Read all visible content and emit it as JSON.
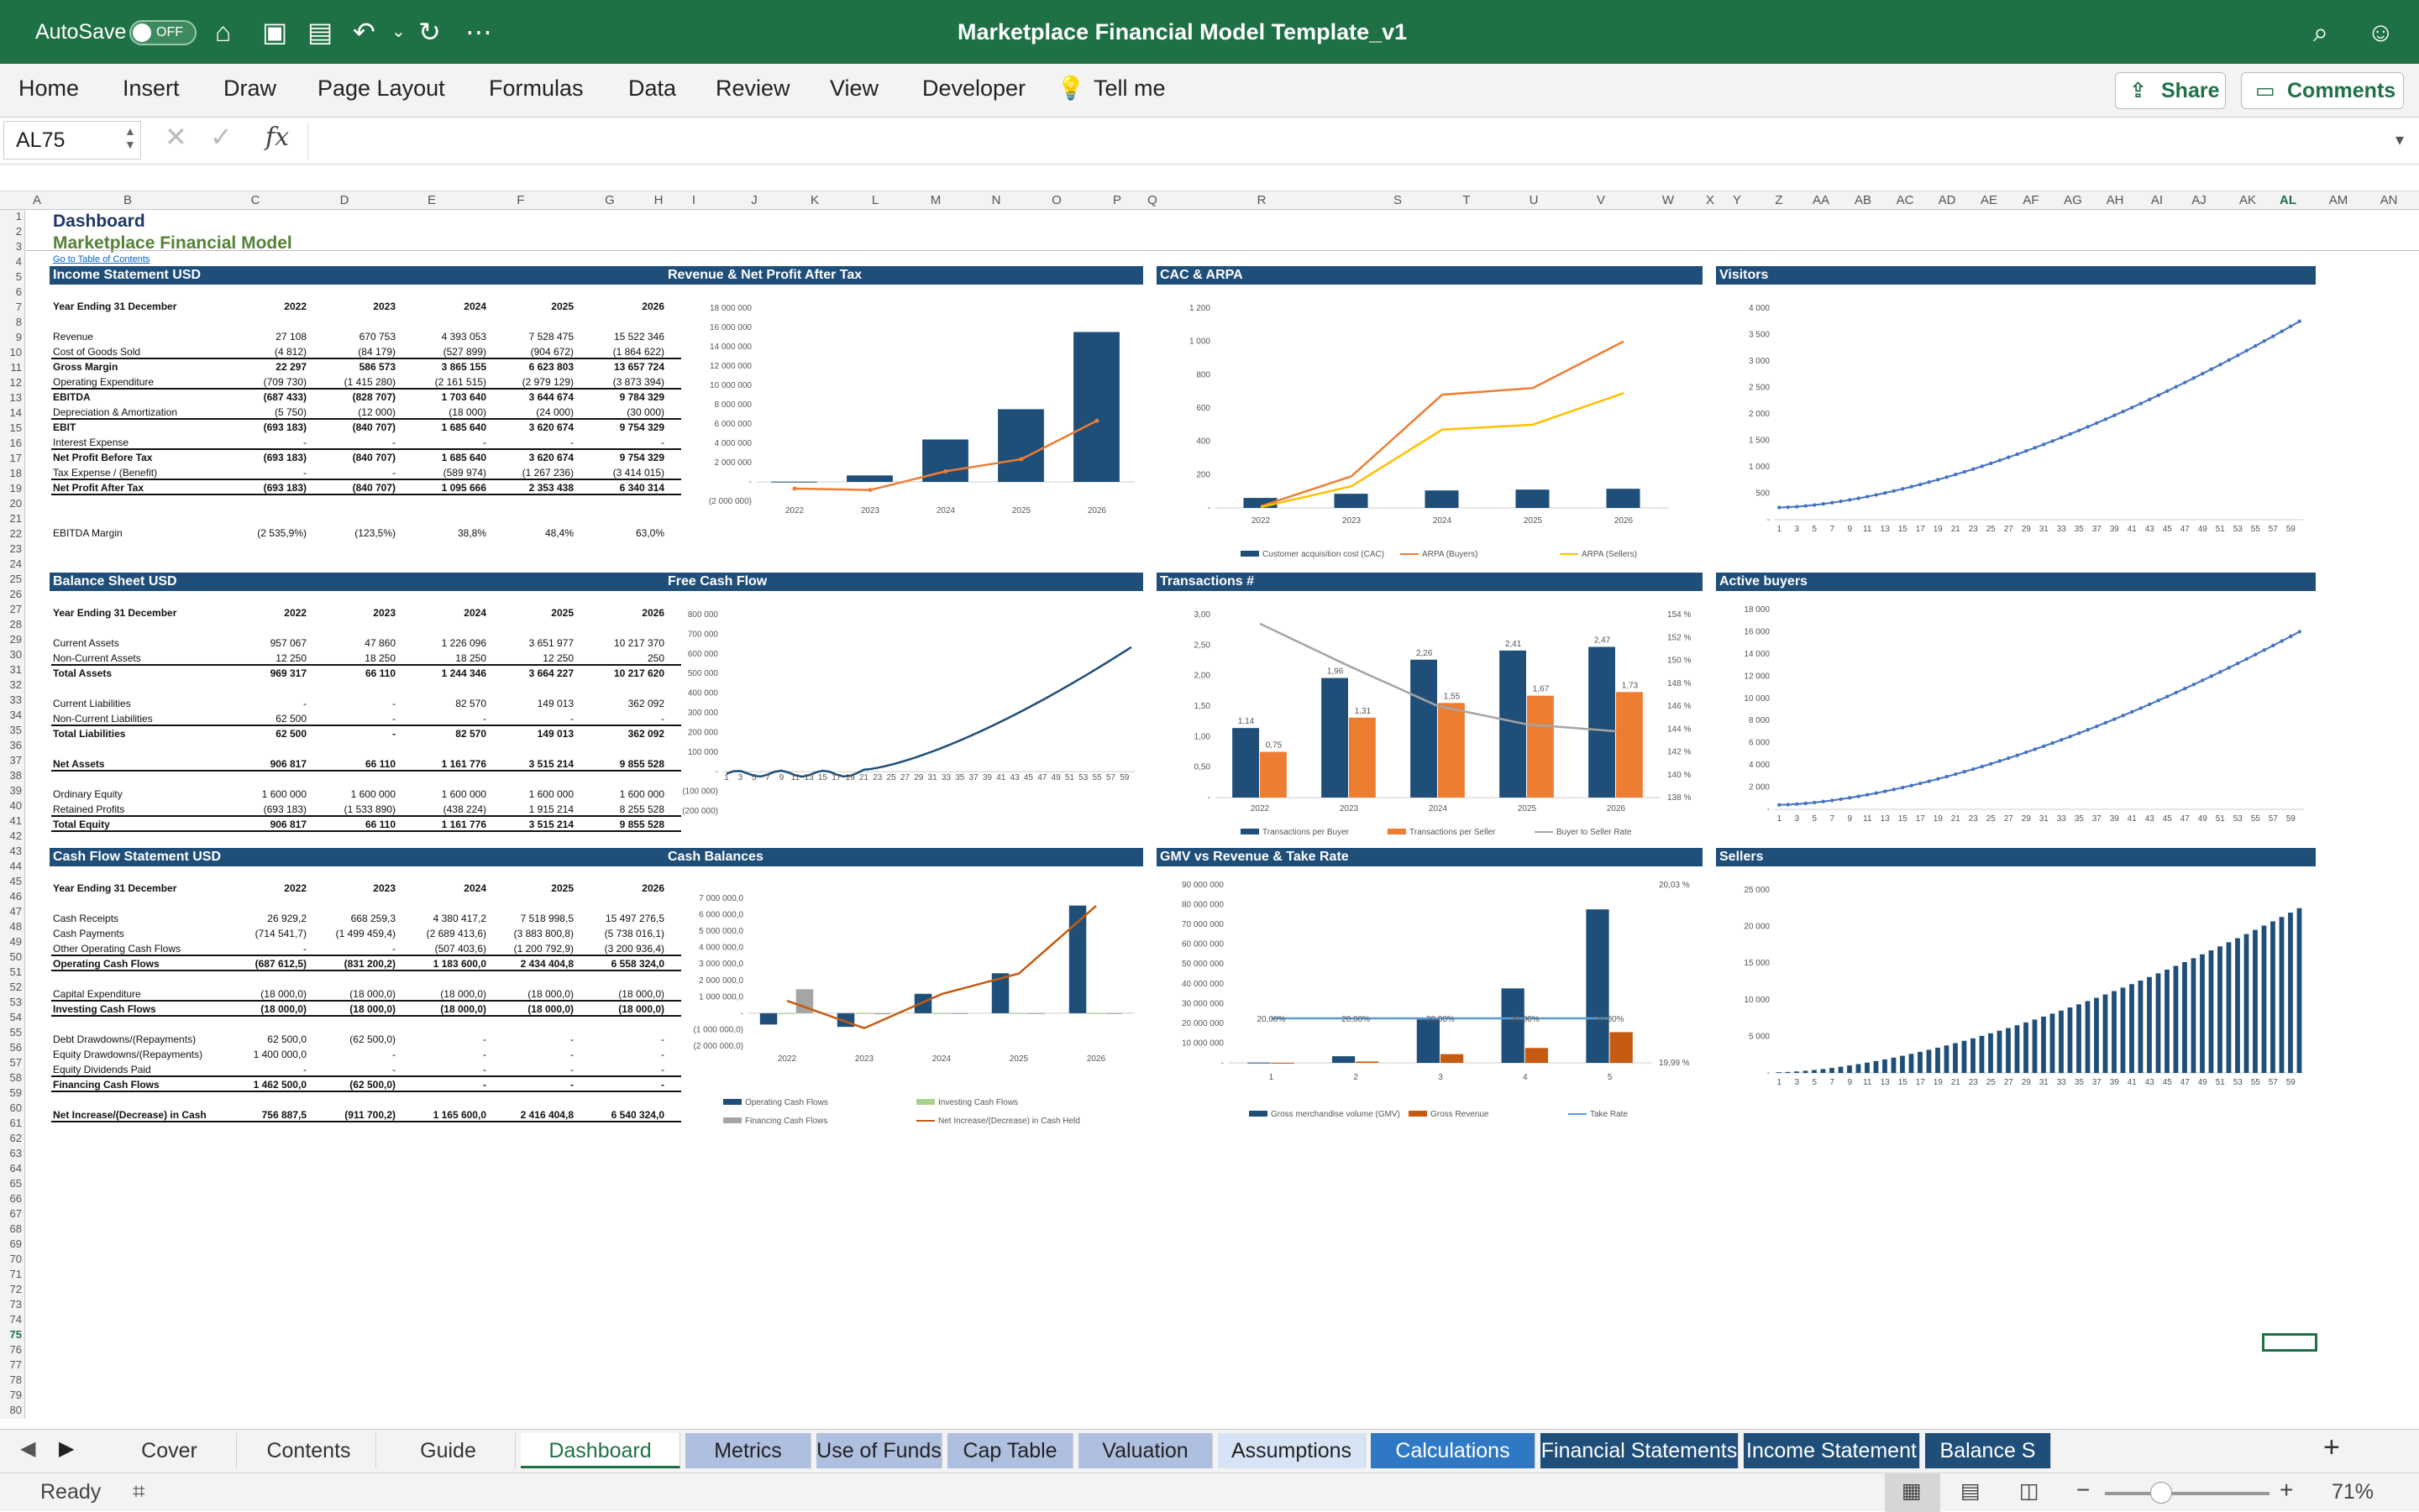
{
  "app": {
    "autosave_label": "AutoSave",
    "autosave_state": "OFF",
    "title": "Marketplace Financial Model Template_v1"
  },
  "ribbon": {
    "tabs": [
      "Home",
      "Insert",
      "Draw",
      "Page Layout",
      "Formulas",
      "Data",
      "Review",
      "View",
      "Developer",
      "Tell me"
    ],
    "share": "Share",
    "comments": "Comments"
  },
  "formula": {
    "cell": "AL75",
    "fx": "fx",
    "value": ""
  },
  "columns": [
    "A",
    "B",
    "C",
    "D",
    "E",
    "F",
    "G",
    "H",
    "I",
    "J",
    "K",
    "L",
    "M",
    "N",
    "O",
    "P",
    "Q",
    "R",
    "S",
    "T",
    "U",
    "V",
    "W",
    "X",
    "Y",
    "Z",
    "AA",
    "AB",
    "AC",
    "AD",
    "AE",
    "AF",
    "AG",
    "AH",
    "AI",
    "AJ",
    "AK",
    "AL",
    "AM",
    "AN"
  ],
  "sheet": {
    "title": "Dashboard",
    "subtitle": "Marketplace Financial Model",
    "link": "Go to Table of Contents"
  },
  "income": {
    "header": "Income Statement USD",
    "cols": [
      "Year Ending 31 December",
      "2022",
      "2023",
      "2024",
      "2025",
      "2026"
    ],
    "rows": [
      {
        "label": "Revenue",
        "v": [
          "27 108",
          "670 753",
          "4 393 053",
          "7 528 475",
          "15 522 346"
        ],
        "bold": false,
        "line": false
      },
      {
        "label": "Cost of Goods Sold",
        "v": [
          "(4 812)",
          "(84 179)",
          "(527 899)",
          "(904 672)",
          "(1 864 622)"
        ],
        "bold": false,
        "line": true
      },
      {
        "label": "Gross Margin",
        "v": [
          "22 297",
          "586 573",
          "3 865 155",
          "6 623 803",
          "13 657 724"
        ],
        "bold": true,
        "line": false
      },
      {
        "label": "Operating Expenditure",
        "v": [
          "(709 730)",
          "(1 415 280)",
          "(2 161 515)",
          "(2 979 129)",
          "(3 873 394)"
        ],
        "bold": false,
        "line": true
      },
      {
        "label": "EBITDA",
        "v": [
          "(687 433)",
          "(828 707)",
          "1 703 640",
          "3 644 674",
          "9 784 329"
        ],
        "bold": true,
        "line": false
      },
      {
        "label": "Depreciation & Amortization",
        "v": [
          "(5 750)",
          "(12 000)",
          "(18 000)",
          "(24 000)",
          "(30 000)"
        ],
        "bold": false,
        "line": true
      },
      {
        "label": "EBIT",
        "v": [
          "(693 183)",
          "(840 707)",
          "1 685 640",
          "3 620 674",
          "9 754 329"
        ],
        "bold": true,
        "line": false
      },
      {
        "label": "Interest Expense",
        "v": [
          "-",
          "-",
          "-",
          "-",
          "-"
        ],
        "bold": false,
        "line": true
      },
      {
        "label": "Net Profit Before Tax",
        "v": [
          "(693 183)",
          "(840 707)",
          "1 685 640",
          "3 620 674",
          "9 754 329"
        ],
        "bold": true,
        "line": false
      },
      {
        "label": "Tax Expense / (Benefit)",
        "v": [
          "-",
          "-",
          "(589 974)",
          "(1 267 236)",
          "(3 414 015)"
        ],
        "bold": false,
        "line": true
      },
      {
        "label": "Net Profit After Tax",
        "v": [
          "(693 183)",
          "(840 707)",
          "1 095 666",
          "2 353 438",
          "6 340 314"
        ],
        "bold": true,
        "line": true
      },
      {
        "label": "",
        "v": [
          "",
          "",
          "",
          "",
          ""
        ],
        "bold": false,
        "line": false
      },
      {
        "label": "",
        "v": [
          "",
          "",
          "",
          "",
          ""
        ],
        "bold": false,
        "line": false
      },
      {
        "label": "EBITDA Margin",
        "v": [
          "(2 535,9%)",
          "(123,5%)",
          "38,8%",
          "48,4%",
          "63,0%"
        ],
        "bold": false,
        "line": false
      }
    ]
  },
  "balance": {
    "header": "Balance Sheet USD",
    "cols": [
      "Year Ending 31 December",
      "2022",
      "2023",
      "2024",
      "2025",
      "2026"
    ],
    "rows": [
      {
        "label": "Current Assets",
        "v": [
          "957 067",
          "47 860",
          "1 226 096",
          "3 651 977",
          "10 217 370"
        ],
        "bold": false,
        "line": false
      },
      {
        "label": "Non-Current Assets",
        "v": [
          "12 250",
          "18 250",
          "18 250",
          "12 250",
          "250"
        ],
        "bold": false,
        "line": true
      },
      {
        "label": "Total Assets",
        "v": [
          "969 317",
          "66 110",
          "1 244 346",
          "3 664 227",
          "10 217 620"
        ],
        "bold": true,
        "line": false
      },
      {
        "label": "",
        "v": [
          "",
          "",
          "",
          "",
          ""
        ],
        "bold": false,
        "line": false
      },
      {
        "label": "Current Liabilities",
        "v": [
          "-",
          "-",
          "82 570",
          "149 013",
          "362 092"
        ],
        "bold": false,
        "line": false
      },
      {
        "label": "Non-Current Liabilities",
        "v": [
          "62 500",
          "-",
          "-",
          "-",
          "-"
        ],
        "bold": false,
        "line": true
      },
      {
        "label": "Total Liabilities",
        "v": [
          "62 500",
          "-",
          "82 570",
          "149 013",
          "362 092"
        ],
        "bold": true,
        "line": false
      },
      {
        "label": "",
        "v": [
          "",
          "",
          "",
          "",
          ""
        ],
        "bold": false,
        "line": false
      },
      {
        "label": "Net Assets",
        "v": [
          "906 817",
          "66 110",
          "1 161 776",
          "3 515 214",
          "9 855 528"
        ],
        "bold": true,
        "line": true
      },
      {
        "label": "",
        "v": [
          "",
          "",
          "",
          "",
          ""
        ],
        "bold": false,
        "line": false
      },
      {
        "label": "Ordinary Equity",
        "v": [
          "1 600 000",
          "1 600 000",
          "1 600 000",
          "1 600 000",
          "1 600 000"
        ],
        "bold": false,
        "line": false
      },
      {
        "label": "Retained Profits",
        "v": [
          "(693 183)",
          "(1 533 890)",
          "(438 224)",
          "1 915 214",
          "8 255 528"
        ],
        "bold": false,
        "line": true
      },
      {
        "label": "Total Equity",
        "v": [
          "906 817",
          "66 110",
          "1 161 776",
          "3 515 214",
          "9 855 528"
        ],
        "bold": true,
        "line": true
      }
    ]
  },
  "cashflow": {
    "header": "Cash Flow Statement USD",
    "cols": [
      "Year Ending 31 December",
      "2022",
      "2023",
      "2024",
      "2025",
      "2026"
    ],
    "rows": [
      {
        "label": "Cash Receipts",
        "v": [
          "26 929,2",
          "668 259,3",
          "4 380 417,2",
          "7 518 998,5",
          "15 497 276,5"
        ],
        "bold": false,
        "line": false
      },
      {
        "label": "Cash Payments",
        "v": [
          "(714 541,7)",
          "(1 499 459,4)",
          "(2 689 413,6)",
          "(3 883 800,8)",
          "(5 738 016,1)"
        ],
        "bold": false,
        "line": false
      },
      {
        "label": "Other Operating Cash Flows",
        "v": [
          "-",
          "-",
          "(507 403,6)",
          "(1 200 792,9)",
          "(3 200 936,4)"
        ],
        "bold": false,
        "line": true
      },
      {
        "label": "Operating Cash Flows",
        "v": [
          "(687 612,5)",
          "(831 200,2)",
          "1 183 600,0",
          "2 434 404,8",
          "6 558 324,0"
        ],
        "bold": true,
        "line": true
      },
      {
        "label": "",
        "v": [
          "",
          "",
          "",
          "",
          ""
        ],
        "bold": false,
        "line": false
      },
      {
        "label": "Capital Expenditure",
        "v": [
          "(18 000,0)",
          "(18 000,0)",
          "(18 000,0)",
          "(18 000,0)",
          "(18 000,0)"
        ],
        "bold": false,
        "line": true
      },
      {
        "label": "Investing Cash Flows",
        "v": [
          "(18 000,0)",
          "(18 000,0)",
          "(18 000,0)",
          "(18 000,0)",
          "(18 000,0)"
        ],
        "bold": true,
        "line": true
      },
      {
        "label": "",
        "v": [
          "",
          "",
          "",
          "",
          ""
        ],
        "bold": false,
        "line": false
      },
      {
        "label": "Debt Drawdowns/(Repayments)",
        "v": [
          "62 500,0",
          "(62 500,0)",
          "-",
          "-",
          "-"
        ],
        "bold": false,
        "line": false
      },
      {
        "label": "Equity Drawdowns/(Repayments)",
        "v": [
          "1 400 000,0",
          "-",
          "-",
          "-",
          "-"
        ],
        "bold": false,
        "line": false
      },
      {
        "label": "Equity Dividends Paid",
        "v": [
          "-",
          "-",
          "-",
          "-",
          "-"
        ],
        "bold": false,
        "line": true
      },
      {
        "label": "Financing Cash Flows",
        "v": [
          "1 462 500,0",
          "(62 500,0)",
          "-",
          "-",
          "-"
        ],
        "bold": true,
        "line": true
      },
      {
        "label": "",
        "v": [
          "",
          "",
          "",
          "",
          ""
        ],
        "bold": false,
        "line": false
      },
      {
        "label": "Net Increase/(Decrease) in Cash",
        "v": [
          "756 887,5",
          "(911 700,2)",
          "1 165 600,0",
          "2 416 404,8",
          "6 540 324,0"
        ],
        "bold": true,
        "line": true
      }
    ]
  },
  "chart_data": [
    {
      "id": "rev",
      "type": "bar",
      "title": "Revenue & Net Profit After Tax",
      "categories": [
        "2022",
        "2023",
        "2024",
        "2025",
        "2026"
      ],
      "series": [
        {
          "values": [
            27108,
            670753,
            4393053,
            7528475,
            15522346
          ],
          "kind": "bar",
          "color": "#1f4e79"
        },
        {
          "values": [
            -693183,
            -840707,
            1095666,
            2353438,
            6340314
          ],
          "kind": "line",
          "color": "#ed7d31"
        }
      ],
      "ylim": [
        -2000000,
        18000000
      ],
      "yticks": [
        "(2 000 000)",
        "-",
        "2 000 000",
        "4 000 000",
        "6 000 000",
        "8 000 000",
        "10 000 000",
        "12 000 000",
        "14 000 000",
        "16 000 000",
        "18 000 000"
      ]
    },
    {
      "id": "cac",
      "type": "bar",
      "title": "CAC & ARPA",
      "categories": [
        "2022",
        "2023",
        "2024",
        "2025",
        "2026"
      ],
      "series": [
        {
          "name": "Customer acquisition cost (CAC)",
          "values": [
            60,
            85,
            105,
            110,
            115
          ],
          "kind": "bar",
          "color": "#1f4e79"
        },
        {
          "name": "ARPA (Buyers)",
          "values": [
            10,
            190,
            680,
            720,
            1000
          ],
          "kind": "line",
          "color": "#ed7d31"
        },
        {
          "name": "ARPA (Sellers)",
          "values": [
            5,
            130,
            470,
            500,
            690
          ],
          "kind": "line",
          "color": "#ffc000"
        }
      ],
      "ylim": [
        0,
        1200
      ],
      "yticks": [
        "-",
        "200",
        "400",
        "600",
        "800",
        "1 000",
        "1 200"
      ]
    },
    {
      "id": "vis",
      "type": "line",
      "title": "Visitors",
      "x_count": 60,
      "start": 230,
      "end": 3750,
      "ylim": [
        0,
        4000
      ],
      "yticks": [
        "-",
        "500",
        "1 000",
        "1 500",
        "2 000",
        "2 500",
        "3 000",
        "3 500",
        "4 000"
      ],
      "color": "#4472c4"
    },
    {
      "id": "fcf",
      "type": "line",
      "title": "Free Cash Flow",
      "x_count": 60,
      "ylim": [
        -200000,
        800000
      ],
      "yticks": [
        "(200 000)",
        "(100 000)",
        "-",
        "100 000",
        "200 000",
        "300 000",
        "400 000",
        "500 000",
        "600 000",
        "700 000",
        "800 000"
      ],
      "color": "#1f4e79"
    },
    {
      "id": "trn",
      "type": "bar",
      "title": "Transactions #",
      "categories": [
        "2022",
        "2023",
        "2024",
        "2025",
        "2026"
      ],
      "series": [
        {
          "name": "Transactions per Buyer",
          "values": [
            1.14,
            1.96,
            2.26,
            2.41,
            2.47
          ],
          "labels": [
            "1,14",
            "1,96",
            "2,26",
            "2,41",
            "2,47"
          ],
          "kind": "bar",
          "color": "#1f4e79"
        },
        {
          "name": "Transactions per Seller",
          "values": [
            0.75,
            1.31,
            1.55,
            1.67,
            1.73
          ],
          "labels": [
            "0,75",
            "1,31",
            "1,55",
            "1,67",
            "1,73"
          ],
          "kind": "bar",
          "color": "#ed7d31"
        },
        {
          "name": "Buyer to Seller Rate",
          "values": [
            153.2,
            149.5,
            146.0,
            144.4,
            143.8
          ],
          "kind": "line",
          "axis": "right",
          "color": "#a5a5a5"
        }
      ],
      "ylim": [
        0,
        3
      ],
      "yticks": [
        "-",
        "0,50",
        "1,00",
        "1,50",
        "2,00",
        "2,50",
        "3,00"
      ],
      "y2lim": [
        138,
        154
      ],
      "y2ticks": [
        "138 %",
        "140 %",
        "142 %",
        "144 %",
        "146 %",
        "148 %",
        "150 %",
        "152 %",
        "154 %"
      ]
    },
    {
      "id": "act",
      "type": "line",
      "title": "Active buyers",
      "x_count": 60,
      "start": 400,
      "end": 16000,
      "ylim": [
        0,
        18000
      ],
      "yticks": [
        "-",
        "2 000",
        "4 000",
        "6 000",
        "8 000",
        "10 000",
        "12 000",
        "14 000",
        "16 000",
        "18 000"
      ],
      "color": "#4472c4"
    },
    {
      "id": "cash",
      "type": "bar",
      "title": "Cash Balances",
      "categories": [
        "2022",
        "2023",
        "2024",
        "2025",
        "2026"
      ],
      "series": [
        {
          "name": "Operating Cash Flows",
          "values": [
            -687612,
            -831200,
            1183600,
            2434405,
            6558324
          ],
          "kind": "bar",
          "color": "#1f4e79"
        },
        {
          "name": "Investing Cash Flows",
          "values": [
            -18000,
            -18000,
            -18000,
            -18000,
            -18000
          ],
          "kind": "bar",
          "color": "#a9d18e"
        },
        {
          "name": "Financing Cash Flows",
          "values": [
            1462500,
            -62500,
            0,
            0,
            0
          ],
          "kind": "bar",
          "color": "#a5a5a5"
        },
        {
          "name": "Net Increase/(Decrease) in Cash Held",
          "values": [
            756888,
            -911700,
            1165600,
            2416405,
            6540324
          ],
          "kind": "line",
          "color": "#c55a11"
        }
      ],
      "ylim": [
        -2000000,
        7000000
      ],
      "yticks": [
        "(2 000 000,0)",
        "(1 000 000,0)",
        "-",
        "1 000 000,0",
        "2 000 000,0",
        "3 000 000,0",
        "4 000 000,0",
        "5 000 000,0",
        "6 000 000,0",
        "7 000 000,0"
      ]
    },
    {
      "id": "gmv",
      "type": "bar",
      "title": "GMV vs Revenue & Take Rate",
      "categories": [
        "1",
        "2",
        "3",
        "4",
        "5"
      ],
      "series": [
        {
          "name": "Gross merchandise volume (GMV)",
          "values": [
            135540,
            3353765,
            21965265,
            37642375,
            77611730
          ],
          "kind": "bar",
          "color": "#1f4e79"
        },
        {
          "name": "Gross Revenue",
          "values": [
            27108,
            670753,
            4393053,
            7528475,
            15522346
          ],
          "kind": "bar",
          "color": "#c55a11"
        },
        {
          "name": "Take Rate",
          "values": [
            20.0,
            20.0,
            20.0,
            20.0,
            20.0
          ],
          "labels": [
            "20,00%",
            "20,00%",
            "20,00%",
            "20,00%",
            "20,00%"
          ],
          "kind": "line",
          "axis": "right",
          "color": "#5b9bd5"
        }
      ],
      "ylim": [
        0,
        90000000
      ],
      "yticks": [
        "-",
        "10 000 000",
        "20 000 000",
        "30 000 000",
        "40 000 000",
        "50 000 000",
        "60 000 000",
        "70 000 000",
        "80 000 000",
        "90 000 000"
      ],
      "y2lim": [
        19.99,
        20.03
      ],
      "y2ticks": [
        "19,99 %",
        "20,03 %"
      ]
    },
    {
      "id": "sel",
      "type": "bar",
      "title": "Sellers",
      "x_count": 60,
      "start": 100,
      "end": 22500,
      "ylim": [
        0,
        25000
      ],
      "yticks": [
        "-",
        "5 000",
        "10 000",
        "15 000",
        "20 000",
        "25 000"
      ],
      "color": "#1f4e79"
    }
  ],
  "sheet_tabs": [
    "Cover",
    "Contents",
    "Guide",
    "Dashboard",
    "Metrics",
    "Use of Funds",
    "Cap Table",
    "Valuation",
    "Assumptions",
    "Calculations",
    "Financial Statements M",
    "Income Statement A",
    "Balance S"
  ],
  "status": {
    "ready": "Ready",
    "zoom": "71%"
  }
}
